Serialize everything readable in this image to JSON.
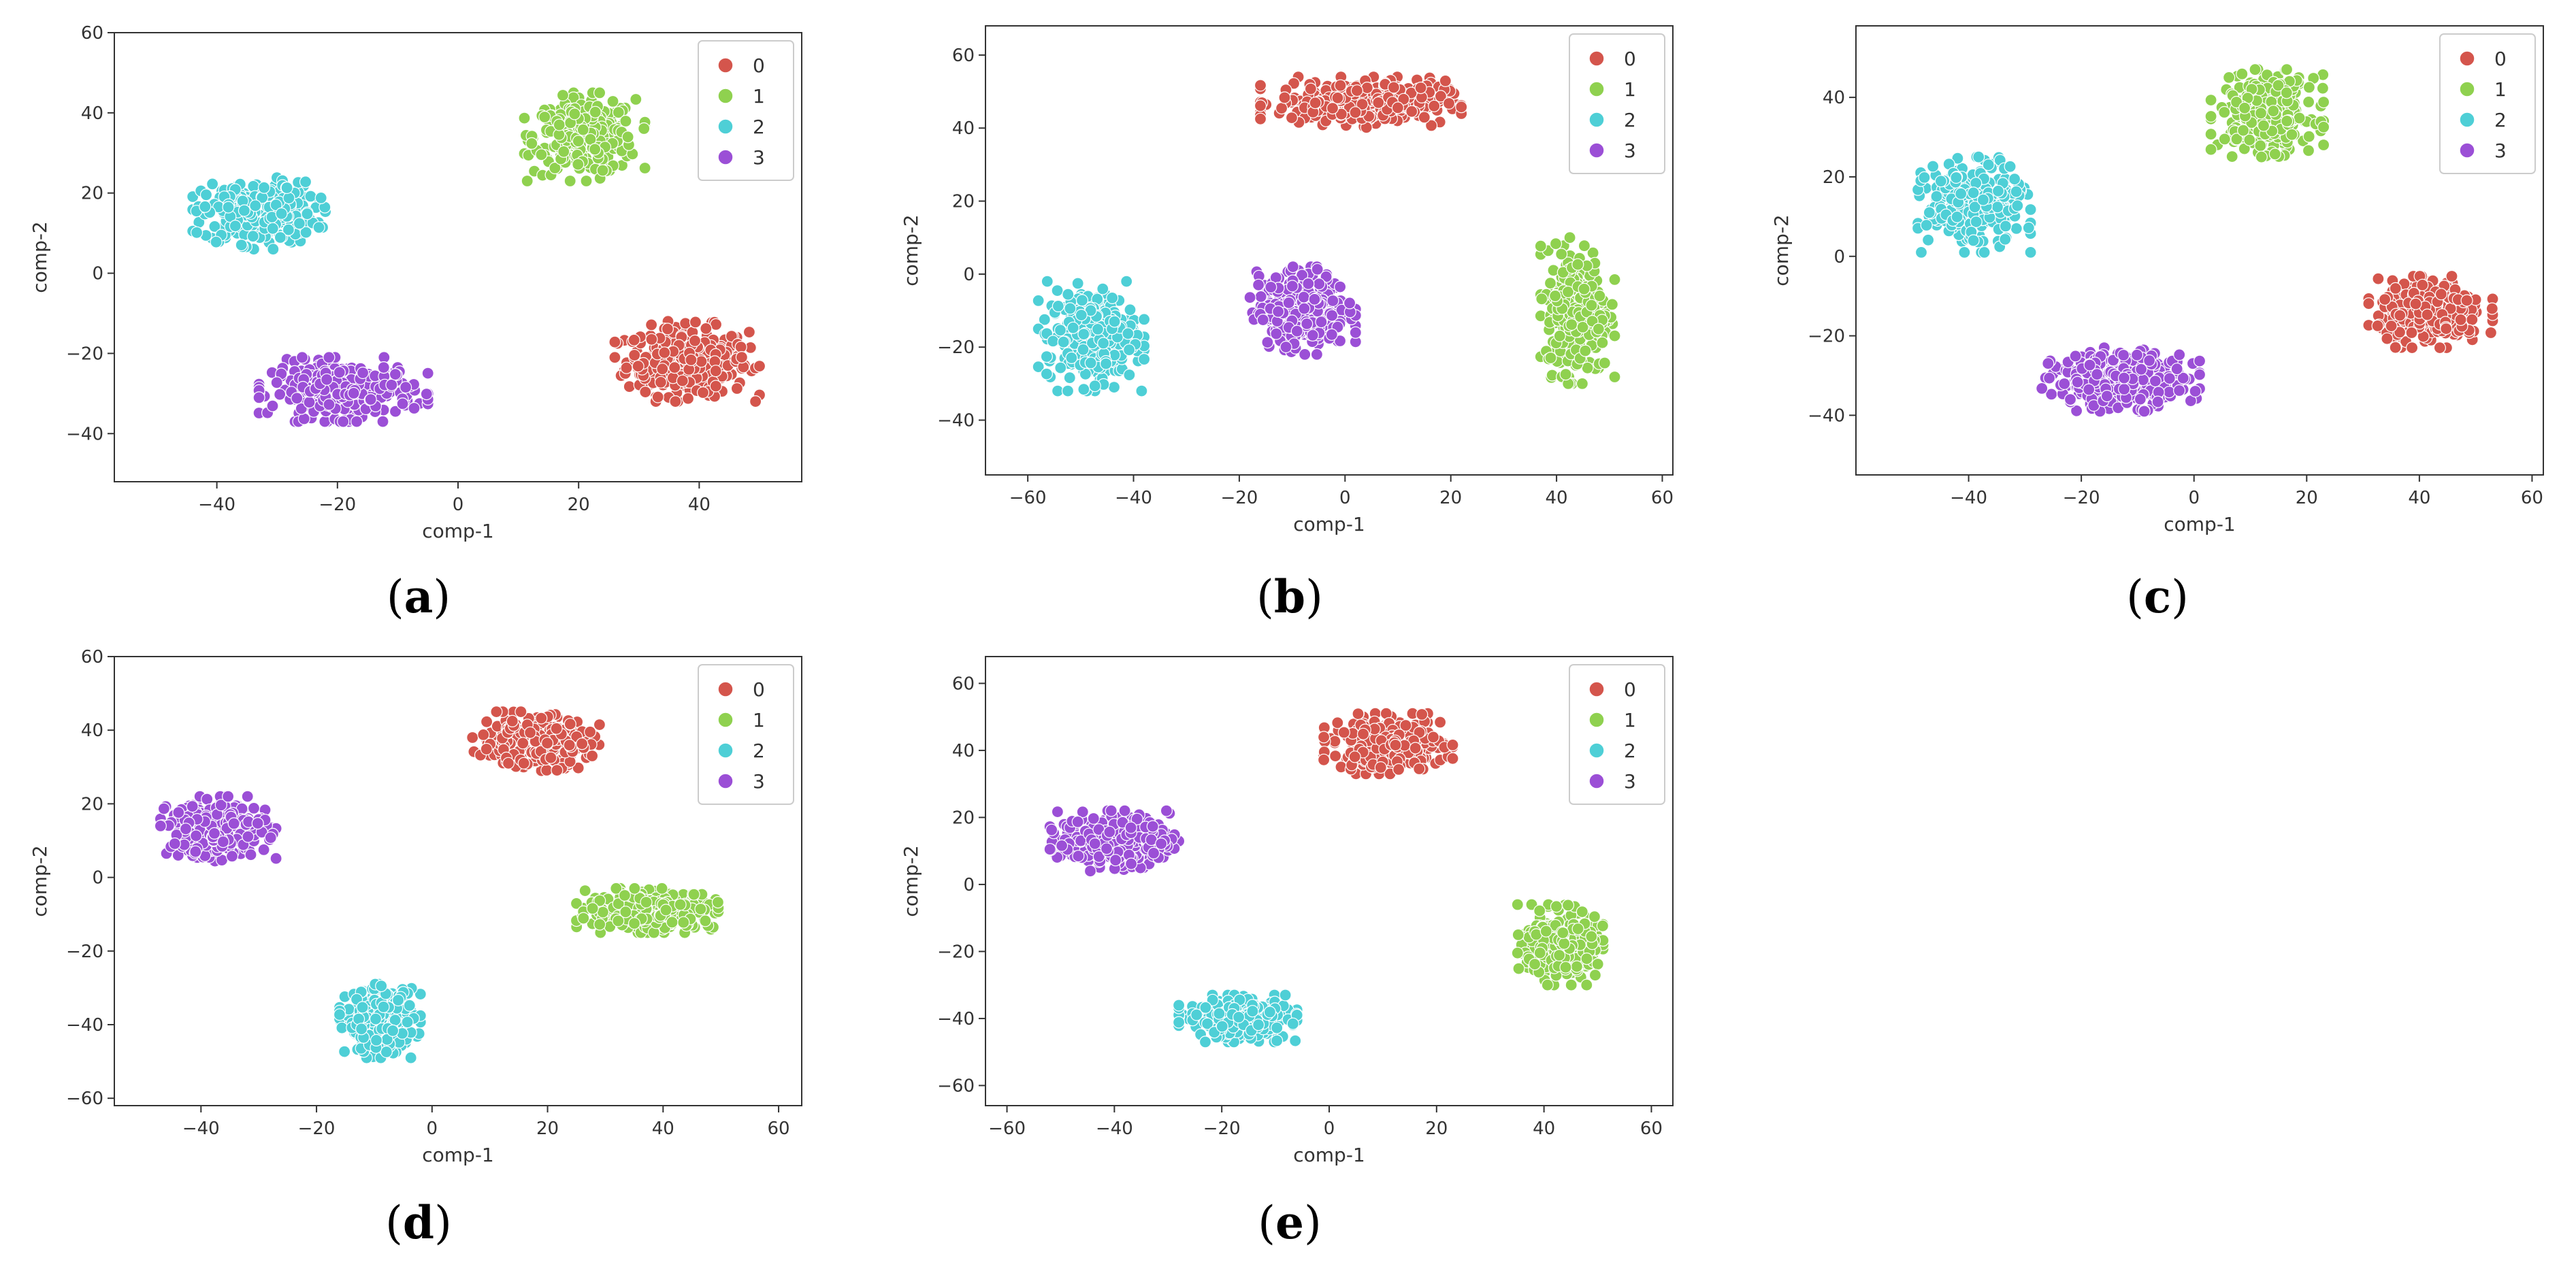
{
  "figure": {
    "legend_labels": [
      "0",
      "1",
      "2",
      "3"
    ],
    "colors": {
      "0": "#d4554c",
      "1": "#8fd14f",
      "2": "#4ecfd6",
      "3": "#9b4fd6"
    }
  },
  "chart_data": [
    {
      "id": "a",
      "type": "scatter",
      "caption": {
        "open": "(",
        "letter": "a",
        "close": ")"
      },
      "xlabel": "comp-1",
      "ylabel": "comp-2",
      "xlim": [
        -57,
        57
      ],
      "ylim": [
        -52,
        60
      ],
      "xticks": [
        -40,
        -20,
        0,
        20,
        40
      ],
      "yticks": [
        -40,
        -20,
        0,
        20,
        40,
        60
      ],
      "legend": {
        "position": "top-right",
        "labels": [
          "0",
          "1",
          "2",
          "3"
        ]
      },
      "series": [
        {
          "name": "0",
          "clusters": [
            {
              "center": [
                38,
                -22
              ],
              "spread": [
                12,
                10
              ],
              "n": 320
            }
          ]
        },
        {
          "name": "1",
          "clusters": [
            {
              "center": [
                21,
                34
              ],
              "spread": [
                10,
                11
              ],
              "n": 320
            }
          ]
        },
        {
          "name": "2",
          "clusters": [
            {
              "center": [
                -33,
                15
              ],
              "spread": [
                11,
                9
              ],
              "n": 320
            }
          ]
        },
        {
          "name": "3",
          "clusters": [
            {
              "center": [
                -19,
                -29
              ],
              "spread": [
                14,
                8
              ],
              "n": 320
            }
          ]
        }
      ]
    },
    {
      "id": "b",
      "type": "scatter",
      "caption": {
        "open": "(",
        "letter": "b",
        "close": ")"
      },
      "xlabel": "comp-1",
      "ylabel": "comp-2",
      "xlim": [
        -68,
        62
      ],
      "ylim": [
        -55,
        68
      ],
      "xticks": [
        -60,
        -40,
        -20,
        0,
        20,
        40,
        60
      ],
      "yticks": [
        -40,
        -20,
        0,
        20,
        40,
        60
      ],
      "legend": {
        "position": "top-right",
        "labels": [
          "0",
          "1",
          "2",
          "3"
        ]
      },
      "series": [
        {
          "name": "0",
          "clusters": [
            {
              "center": [
                3,
                47
              ],
              "spread": [
                19,
                7
              ],
              "n": 320
            }
          ]
        },
        {
          "name": "1",
          "clusters": [
            {
              "center": [
                44,
                -10
              ],
              "spread": [
                7,
                20
              ],
              "n": 320
            }
          ]
        },
        {
          "name": "2",
          "clusters": [
            {
              "center": [
                -48,
                -17
              ],
              "spread": [
                10,
                15
              ],
              "n": 320
            }
          ]
        },
        {
          "name": "3",
          "clusters": [
            {
              "center": [
                -8,
                -10
              ],
              "spread": [
                10,
                12
              ],
              "n": 320
            }
          ]
        }
      ]
    },
    {
      "id": "c",
      "type": "scatter",
      "caption": {
        "open": "(",
        "letter": "c",
        "close": ")"
      },
      "xlabel": "comp-1",
      "ylabel": "comp-2",
      "xlim": [
        -60,
        62
      ],
      "ylim": [
        -55,
        58
      ],
      "xticks": [
        -40,
        -20,
        0,
        20,
        40,
        60
      ],
      "yticks": [
        -40,
        -20,
        0,
        20,
        40
      ],
      "legend": {
        "position": "top-right",
        "labels": [
          "0",
          "1",
          "2",
          "3"
        ]
      },
      "series": [
        {
          "name": "0",
          "clusters": [
            {
              "center": [
                42,
                -14
              ],
              "spread": [
                11,
                9
              ],
              "n": 320
            }
          ]
        },
        {
          "name": "1",
          "clusters": [
            {
              "center": [
                13,
                36
              ],
              "spread": [
                10,
                11
              ],
              "n": 320
            }
          ]
        },
        {
          "name": "2",
          "clusters": [
            {
              "center": [
                -39,
                13
              ],
              "spread": [
                10,
                12
              ],
              "n": 320
            }
          ]
        },
        {
          "name": "3",
          "clusters": [
            {
              "center": [
                -13,
                -31
              ],
              "spread": [
                14,
                8
              ],
              "n": 320
            }
          ]
        }
      ]
    },
    {
      "id": "d",
      "type": "scatter",
      "caption": {
        "open": "(",
        "letter": "d",
        "close": ")"
      },
      "xlabel": "comp-1",
      "ylabel": "comp-2",
      "xlim": [
        -55,
        64
      ],
      "ylim": [
        -62,
        60
      ],
      "xticks": [
        -40,
        -20,
        0,
        20,
        40,
        60
      ],
      "yticks": [
        -60,
        -40,
        -20,
        0,
        20,
        40,
        60
      ],
      "legend": {
        "position": "top-right",
        "labels": [
          "0",
          "1",
          "2",
          "3"
        ]
      },
      "series": [
        {
          "name": "0",
          "clusters": [
            {
              "center": [
                18,
                37
              ],
              "spread": [
                11,
                8
              ],
              "n": 320
            }
          ]
        },
        {
          "name": "1",
          "clusters": [
            {
              "center": [
                38,
                -9
              ],
              "spread": [
                13,
                6
              ],
              "n": 320
            }
          ]
        },
        {
          "name": "2",
          "clusters": [
            {
              "center": [
                -9,
                -39
              ],
              "spread": [
                7,
                10
              ],
              "n": 320
            }
          ]
        },
        {
          "name": "3",
          "clusters": [
            {
              "center": [
                -37,
                13
              ],
              "spread": [
                10,
                9
              ],
              "n": 320
            }
          ]
        }
      ]
    },
    {
      "id": "e",
      "type": "scatter",
      "caption": {
        "open": "(",
        "letter": "e",
        "close": ")"
      },
      "xlabel": "comp-1",
      "ylabel": "comp-2",
      "xlim": [
        -64,
        64
      ],
      "ylim": [
        -66,
        68
      ],
      "xticks": [
        -60,
        -40,
        -20,
        0,
        20,
        40,
        60
      ],
      "yticks": [
        -60,
        -40,
        -20,
        0,
        20,
        40,
        60
      ],
      "legend": {
        "position": "top-right",
        "labels": [
          "0",
          "1",
          "2",
          "3"
        ]
      },
      "series": [
        {
          "name": "0",
          "clusters": [
            {
              "center": [
                11,
                42
              ],
              "spread": [
                12,
                9
              ],
              "n": 320
            }
          ]
        },
        {
          "name": "1",
          "clusters": [
            {
              "center": [
                43,
                -18
              ],
              "spread": [
                8,
                12
              ],
              "n": 320
            }
          ]
        },
        {
          "name": "2",
          "clusters": [
            {
              "center": [
                -17,
                -40
              ],
              "spread": [
                11,
                7
              ],
              "n": 320
            }
          ]
        },
        {
          "name": "3",
          "clusters": [
            {
              "center": [
                -40,
                13
              ],
              "spread": [
                12,
                9
              ],
              "n": 320
            }
          ]
        }
      ]
    }
  ]
}
